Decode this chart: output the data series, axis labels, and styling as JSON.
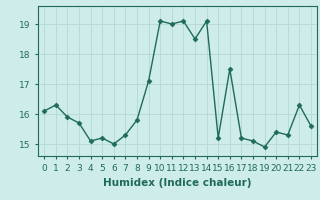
{
  "x": [
    0,
    1,
    2,
    3,
    4,
    5,
    6,
    7,
    8,
    9,
    10,
    11,
    12,
    13,
    14,
    15,
    16,
    17,
    18,
    19,
    20,
    21,
    22,
    23
  ],
  "y": [
    16.1,
    16.3,
    15.9,
    15.7,
    15.1,
    15.2,
    15.0,
    15.3,
    15.8,
    17.1,
    19.1,
    19.0,
    19.1,
    18.5,
    19.1,
    15.2,
    17.5,
    15.2,
    15.1,
    14.9,
    15.4,
    15.3,
    16.3,
    15.6
  ],
  "line_color": "#1f6b5a",
  "marker": "D",
  "marker_size": 2.5,
  "bg_color": "#ceecea",
  "grid_color": "#b8dbd8",
  "xlabel": "Humidex (Indice chaleur)",
  "xlim": [
    -0.5,
    23.5
  ],
  "ylim": [
    14.6,
    19.6
  ],
  "yticks": [
    15,
    16,
    17,
    18,
    19
  ],
  "xticks": [
    0,
    1,
    2,
    3,
    4,
    5,
    6,
    7,
    8,
    9,
    10,
    11,
    12,
    13,
    14,
    15,
    16,
    17,
    18,
    19,
    20,
    21,
    22,
    23
  ],
  "xtick_labels": [
    "0",
    "1",
    "2",
    "3",
    "4",
    "5",
    "6",
    "7",
    "8",
    "9",
    "10",
    "11",
    "12",
    "13",
    "14",
    "15",
    "16",
    "17",
    "18",
    "19",
    "20",
    "21",
    "22",
    "23"
  ],
  "font_color": "#1f6b5a",
  "xlabel_fontsize": 7.5,
  "tick_fontsize": 6.5,
  "linewidth": 1.0
}
